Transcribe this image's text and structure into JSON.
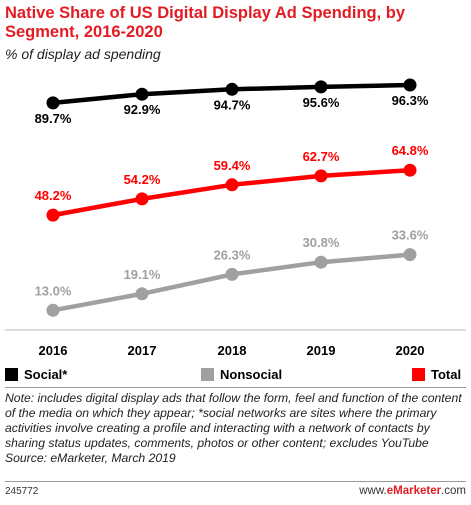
{
  "title": "Native Share of US Digital Display Ad Spending, by Segment, 2016-2020",
  "subtitle": "% of display ad spending",
  "chart_data": {
    "type": "line",
    "categories": [
      "2016",
      "2017",
      "2018",
      "2019",
      "2020"
    ],
    "series": [
      {
        "name": "Social*",
        "color": "#000000",
        "values": [
          89.7,
          92.9,
          94.7,
          95.6,
          96.3
        ],
        "labels": [
          "89.7%",
          "92.9%",
          "94.7%",
          "95.6%",
          "96.3%"
        ]
      },
      {
        "name": "Nonsocial",
        "color": "#a0a0a0",
        "values": [
          13.0,
          19.1,
          26.3,
          30.8,
          33.6
        ],
        "labels": [
          "13.0%",
          "19.1%",
          "26.3%",
          "30.8%",
          "33.6%"
        ]
      },
      {
        "name": "Total",
        "color": "#ff0000",
        "values": [
          48.2,
          54.2,
          59.4,
          62.7,
          64.8
        ],
        "labels": [
          "48.2%",
          "54.2%",
          "59.4%",
          "62.7%",
          "64.8%"
        ]
      }
    ],
    "ylim": [
      0,
      100
    ],
    "grid": false,
    "legend_position": "bottom"
  },
  "note": "Note: includes digital display ads that follow the form, feel and function of the content of the media on which they appear; *social networks are sites where the primary activities involve creating a profile and interacting with a network of contacts by sharing status updates, comments, photos or other content; excludes YouTube",
  "source": "Source: eMarketer, March 2019",
  "footer": {
    "id": "245772",
    "brand_prefix": "www.",
    "brand_name": "eMarketer",
    "brand_suffix": ".com"
  }
}
